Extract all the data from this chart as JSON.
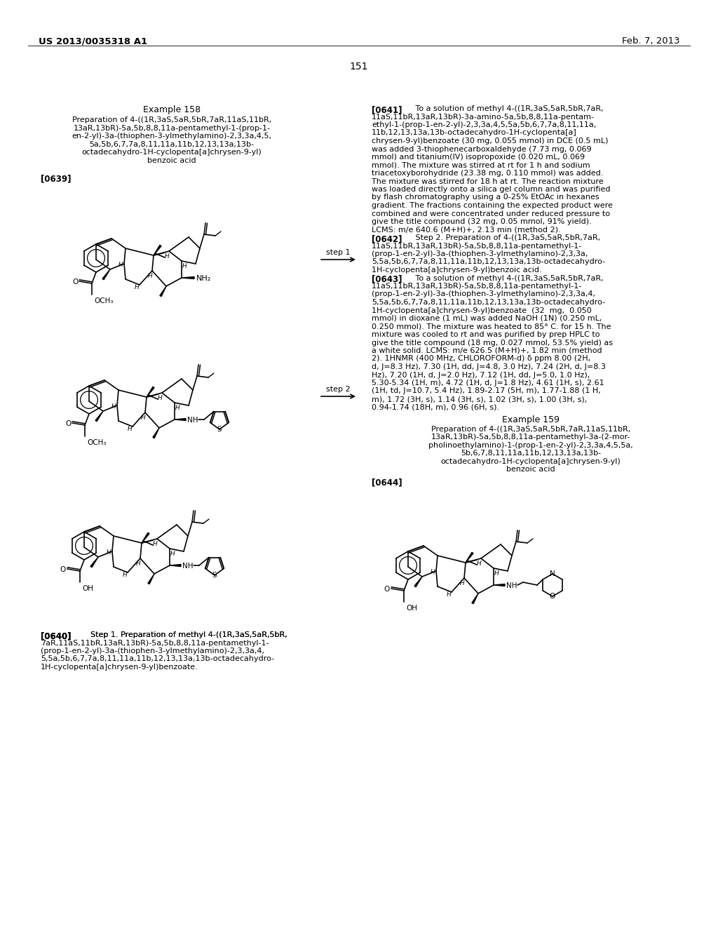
{
  "header_left": "US 2013/0035318 A1",
  "header_right": "Feb. 7, 2013",
  "page_number": "151",
  "example158_title": "Example 158",
  "prep158_lines": [
    "Preparation of 4-((1R,3aS,5aR,5bR,7aR,11aS,11bR,",
    "13aR,13bR)-5a,5b,8,8,11a-pentamethyl-1-(prop-1-",
    "en-2-yl)-3a-(thiophen-3-ylmethylamino)-2,3,3a,4,5,",
    "5a,5b,6,7,7a,8,11,11a,11b,12,13,13a,13b-",
    "octadecahydro-1H-cyclopenta[a]chrysen-9-yl)",
    "benzoic acid"
  ],
  "label_0639": "[0639]",
  "step1_label": "step 1",
  "step2_label": "step 2",
  "label_0640": "[0640]",
  "text_0640": "    Step 1. Preparation of methyl 4-((1R,3aS,5aR,5bR,\n7aR,11aS,11bR,13aR,13bR)-5a,5b,8,8,11a-pentamethyl-1-\n(prop-1-en-2-yl)-3a-(thiophen-3-ylmethylamino)-2,3,3a,4,\n5,5a,5b,6,7,7a,8,11,11a,11b,12,13,13a,13b-octadecahydro-\n1H-cyclopenta[a]chrysen-9-yl)benzoate.",
  "label_0641": "[0641]",
  "text_0641": "   To a solution of methyl 4-((1R,3aS,5aR,5bR,7aR,\n11aS,11bR,13aR,13bR)-3a-amino-5a,5b,8,8,11a-pentam-\nethyl-1-(prop-1-en-2-yl)-2,3,3a,4,5,5a,5b,6,7,7a,8,11,11a,\n11b,12,13,13a,13b-octadecahydro-1H-cyclopenta[a]\nchrysen-9-yl)benzoate (30 mg, 0.055 mmol) in DCE (0.5 mL)\nwas added 3-thiophenecarboxaldehyde (7.73 mg, 0.069\nmmol) and titanium(IV) isopropoxide (0.020 mL, 0.069\nmmol). The mixture was stirred at rt for 1 h and sodium\ntriacetoxyborohydride (23.38 mg, 0.110 mmol) was added.\nThe mixture was stirred for 18 h at rt. The reaction mixture\nwas loaded directly onto a silica gel column and was purified\nby flash chromatography using a 0-25% EtOAc in hexanes\ngradient. The fractions containing the expected product were\ncombined and were concentrated under reduced pressure to\ngive the title compound (32 mg, 0.05 mmol, 91% yield).\nLCMS: m/e 640.6 (M+H)+, 2.13 min (method 2).",
  "label_0642": "[0642]",
  "text_0642": "   Step 2. Preparation of 4-((1R,3aS,5aR,5bR,7aR,\n11aS,11bR,13aR,13bR)-5a,5b,8,8,11a-pentamethyl-1-\n(prop-1-en-2-yl)-3a-(thiophen-3-ylmethylamino)-2,3,3a,\n5,5a,5b,6,7,7a,8,11,11a,11b,12,13,13a,13b-octadecahydro-\n1H-cyclopenta[a]chrysen-9-yl)benzoic acid.",
  "label_0643": "[0643]",
  "text_0643": "   To a solution of methyl 4-((1R,3aS,5aR,5bR,7aR,\n11aS,11bR,13aR,13bR)-5a,5b,8,8,11a-pentamethyl-1-\n(prop-1-en-2-yl)-3a-(thiophen-3-ylmethylamino)-2,3,3a,4,\n5,5a,5b,6,7,7a,8,11,11a,11b,12,13,13a,13b-octadecahydro-\n1H-cyclopenta[a]chrysen-9-yl)benzoate  (32  mg,  0.050\nmmol) in dioxane (1 mL) was added NaOH (1N) (0.250 mL,\n0.250 mmol). The mixture was heated to 85° C. for 15 h. The\nmixture was cooled to rt and was purified by prep HPLC to\ngive the title compound (18 mg, 0.027 mmol, 53.5% yield) as\na white solid. LCMS: m/e 626.5 (M+H)+, 1.82 min (method\n2). 1HNMR (400 MHz, CHLOROFORM-d) δ ppm 8.00 (2H,\nd, J=8.3 Hz), 7.30 (1H, dd, J=4.8, 3.0 Hz), 7.24 (2H, d, J=8.3\nHz), 7.20 (1H, d, J=2.0 Hz), 7.12 (1H, dd, J=5.0, 1.0 Hz),\n5.30-5.34 (1H, m), 4.72 (1H, d, J=1.8 Hz), 4.61 (1H, s), 2.61\n(1H, td, J=10.7, 5.4 Hz), 1.89-2.17 (5H, m), 1.77-1.88 (1 H,\nm), 1.72 (3H, s), 1.14 (3H, s), 1.02 (3H, s), 1.00 (3H, s),\n0.94-1.74 (18H, m), 0.96 (6H, s).",
  "example159_title": "Example 159",
  "prep159_lines": [
    "Preparation of 4-((1R,3aS,5aR,5bR,7aR,11aS,11bR,",
    "13aR,13bR)-5a,5b,8,8,11a-pentamethyl-3a-(2-mor-",
    "pholinoethylamino)-1-(prop-1-en-2-yl)-2,3,3a,4,5,5a,",
    "5b,6,7,8,11,11a,11b,12,13,13a,13b-",
    "octadecahydro-1H-cyclopenta[a]chrysen-9-yl)",
    "benzoic acid"
  ],
  "label_0644": "[0644]"
}
